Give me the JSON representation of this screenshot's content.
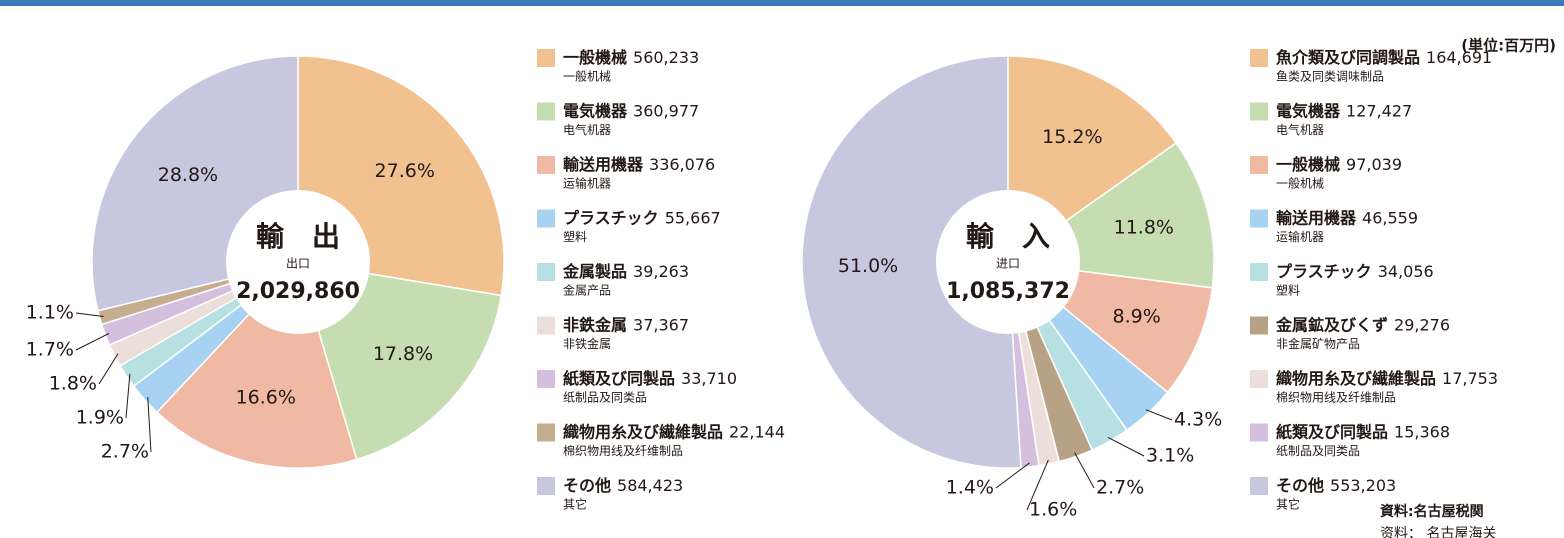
{
  "unit": "(単位:百万円)",
  "source": "資料:名古屋税関",
  "source_cn": "资料： 名古屋海关",
  "chart_data": [
    {
      "type": "pie",
      "title": "輸　出",
      "subtitle": "出口",
      "total": "2,029,860",
      "categories": [
        "一般機械",
        "電気機器",
        "輸送用機器",
        "プラスチック",
        "金属製品",
        "非鉄金属",
        "紙類及び同製品",
        "織物用糸及び繊維製品",
        "その他"
      ],
      "sublabels": [
        "一般机械",
        "电气机器",
        "运输机器",
        "塑料",
        "金属产品",
        "非铁金属",
        "纸制品及同类品",
        "棉织物用线及纤维制品",
        "其它"
      ],
      "amount_labels": [
        "560,233",
        "360,977",
        "336,076",
        "55,667",
        "39,263",
        "37,367",
        "33,710",
        "22,144",
        "584,423"
      ],
      "values": [
        27.6,
        17.8,
        16.6,
        2.7,
        1.9,
        1.8,
        1.7,
        1.1,
        28.8
      ],
      "value_labels": [
        "27.6%",
        "17.8%",
        "16.6%",
        "2.7%",
        "1.9%",
        "1.8%",
        "1.7%",
        "1.1%",
        "28.8%"
      ],
      "colors": [
        "#f1c18f",
        "#c6ddb1",
        "#f0b9a4",
        "#a8d2f1",
        "#b6e0e1",
        "#ecdfd9",
        "#d4bfdf",
        "#c5ad90",
        "#c7c7df"
      ]
    },
    {
      "type": "pie",
      "title": "輸　入",
      "subtitle": "进口",
      "total": "1,085,372",
      "categories": [
        "魚介類及び同調製品",
        "電気機器",
        "一般機械",
        "輸送用機器",
        "プラスチック",
        "金属鉱及びくず",
        "織物用糸及び繊維製品",
        "紙類及び同製品",
        "その他"
      ],
      "sublabels": [
        "鱼类及同类调味制品",
        "电气机器",
        "一般机械",
        "运输机器",
        "塑料",
        "非金属矿物产品",
        "棉织物用线及纤维制品",
        "纸制品及同类品",
        "其它"
      ],
      "amount_labels": [
        "164,691",
        "127,427",
        "97,039",
        "46,559",
        "34,056",
        "29,276",
        "17,753",
        "15,368",
        "553,203"
      ],
      "values": [
        15.2,
        11.8,
        8.9,
        4.3,
        3.1,
        2.7,
        1.6,
        1.4,
        51.0
      ],
      "value_labels": [
        "15.2%",
        "11.8%",
        "8.9%",
        "4.3%",
        "3.1%",
        "2.7%",
        "1.6%",
        "1.4%",
        "51.0%"
      ],
      "colors": [
        "#f1c18f",
        "#c6ddb1",
        "#f0b9a4",
        "#a8d2f1",
        "#b6e0e1",
        "#b8a285",
        "#ecdfd9",
        "#d4bfdf",
        "#c7c7df"
      ]
    }
  ]
}
